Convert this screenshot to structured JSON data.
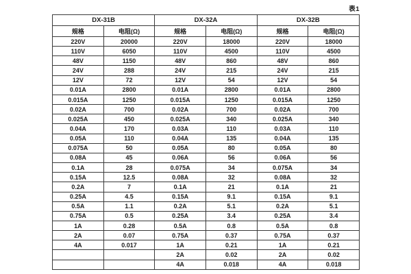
{
  "caption": "表1",
  "colors": {
    "background": "#ffffff",
    "border": "#3a3a3a",
    "text": "#1c1c1c"
  },
  "table": {
    "groups": [
      {
        "name": "DX-31B"
      },
      {
        "name": "DX-32A"
      },
      {
        "name": "DX-32B"
      }
    ],
    "subheaders": {
      "spec": "规格",
      "resistance": "电阻(Ω)"
    },
    "rows": [
      [
        "220V",
        "20000",
        "220V",
        "18000",
        "220V",
        "18000"
      ],
      [
        "110V",
        "6050",
        "110V",
        "4500",
        "110V",
        "4500"
      ],
      [
        "48V",
        "1150",
        "48V",
        "860",
        "48V",
        "860"
      ],
      [
        "24V",
        "288",
        "24V",
        "215",
        "24V",
        "215"
      ],
      [
        "12V",
        "72",
        "12V",
        "54",
        "12V",
        "54"
      ],
      [
        "0.01A",
        "2800",
        "0.01A",
        "2800",
        "0.01A",
        "2800"
      ],
      [
        "0.015A",
        "1250",
        "0.015A",
        "1250",
        "0.015A",
        "1250"
      ],
      [
        "0.02A",
        "700",
        "0.02A",
        "700",
        "0.02A",
        "700"
      ],
      [
        "0.025A",
        "450",
        "0.025A",
        "340",
        "0.025A",
        "340"
      ],
      [
        "0.04A",
        "170",
        "0.03A",
        "110",
        "0.03A",
        "110"
      ],
      [
        "0.05A",
        "110",
        "0.04A",
        "135",
        "0.04A",
        "135"
      ],
      [
        "0.075A",
        "50",
        "0.05A",
        "80",
        "0.05A",
        "80"
      ],
      [
        "0.08A",
        "45",
        "0.06A",
        "56",
        "0.06A",
        "56"
      ],
      [
        "0.1A",
        "28",
        "0.075A",
        "34",
        "0.075A",
        "34"
      ],
      [
        "0.15A",
        "12.5",
        "0.08A",
        "32",
        "0.08A",
        "32"
      ],
      [
        "0.2A",
        "7",
        "0.1A",
        "21",
        "0.1A",
        "21"
      ],
      [
        "0.25A",
        "4.5",
        "0.15A",
        "9.1",
        "0.15A",
        "9.1"
      ],
      [
        "0.5A",
        "1.1",
        "0.2A",
        "5.1",
        "0.2A",
        "5.1"
      ],
      [
        "0.75A",
        "0.5",
        "0.25A",
        "3.4",
        "0.25A",
        "3.4"
      ],
      [
        "1A",
        "0.28",
        "0.5A",
        "0.8",
        "0.5A",
        "0.8"
      ],
      [
        "2A",
        "0.07",
        "0.75A",
        "0.37",
        "0.75A",
        "0.37"
      ],
      [
        "4A",
        "0.017",
        "1A",
        "0.21",
        "1A",
        "0.21"
      ],
      [
        "",
        "",
        "2A",
        "0.02",
        "2A",
        "0.02"
      ],
      [
        "",
        "",
        "4A",
        "0.018",
        "4A",
        "0.018"
      ]
    ]
  }
}
